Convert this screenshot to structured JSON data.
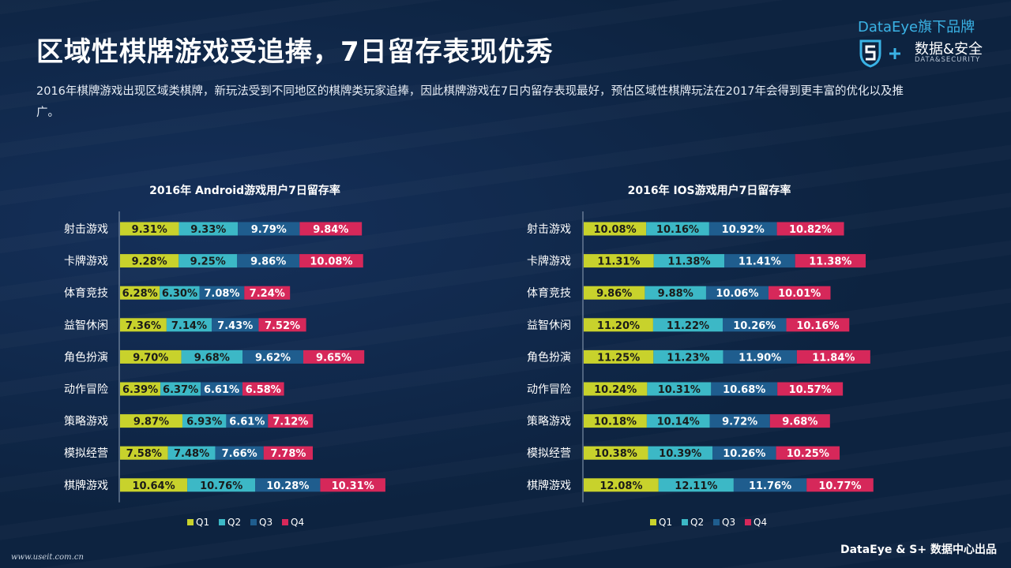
{
  "page": {
    "title": "区域性棋牌游戏受追捧，7日留存表现优秀",
    "description": "2016年棋牌游戏出现区域类棋牌，新玩法受到不同地区的棋牌类玩家追捧，因此棋牌游戏在7日内留存表现最好，预估区域性棋牌玩法在2017年会得到更丰富的优化以及推广。",
    "watermark": "www.useit.com.cn",
    "source": "DataEye & S+ 数据中心出品"
  },
  "logo": {
    "top_text": "DataEye旗下品牌",
    "cn_text": "数据&安全",
    "en_text": "DATA&SECURITY",
    "icon": "shield-s-plus-icon"
  },
  "colors": {
    "Q1": "#c8d22c",
    "Q2": "#3cb8c6",
    "Q3": "#1f5d8e",
    "Q4": "#d6285a",
    "background": "#0d2340"
  },
  "chart_data": [
    {
      "type": "bar",
      "orientation": "horizontal",
      "stacked": true,
      "title": "2016年 Android游戏用户7日留存率",
      "categories": [
        "射击游戏",
        "卡牌游戏",
        "体育竞技",
        "益智休闲",
        "角色扮演",
        "动作冒险",
        "策略游戏",
        "模拟经营",
        "棋牌游戏"
      ],
      "series": [
        {
          "name": "Q1",
          "values": [
            9.31,
            9.28,
            6.28,
            7.36,
            9.7,
            6.39,
            9.87,
            7.58,
            10.64
          ]
        },
        {
          "name": "Q2",
          "values": [
            9.33,
            9.25,
            6.3,
            7.14,
            9.68,
            6.37,
            6.93,
            7.48,
            10.76
          ]
        },
        {
          "name": "Q3",
          "values": [
            9.79,
            9.86,
            7.08,
            7.43,
            9.62,
            6.61,
            6.61,
            7.66,
            10.28
          ]
        },
        {
          "name": "Q4",
          "values": [
            9.84,
            10.08,
            7.24,
            7.52,
            9.65,
            6.58,
            7.12,
            7.78,
            10.31
          ]
        }
      ],
      "value_suffix": "%",
      "legend": "bottom",
      "grid": false
    },
    {
      "type": "bar",
      "orientation": "horizontal",
      "stacked": true,
      "title": "2016年 IOS游戏用户7日留存率",
      "categories": [
        "射击游戏",
        "卡牌游戏",
        "体育竞技",
        "益智休闲",
        "角色扮演",
        "动作冒险",
        "策略游戏",
        "模拟经营",
        "棋牌游戏"
      ],
      "series": [
        {
          "name": "Q1",
          "values": [
            10.08,
            11.31,
            9.86,
            11.2,
            11.25,
            10.24,
            10.18,
            10.38,
            12.08
          ]
        },
        {
          "name": "Q2",
          "values": [
            10.16,
            11.38,
            9.88,
            11.22,
            11.23,
            10.31,
            10.14,
            10.39,
            12.11
          ]
        },
        {
          "name": "Q3",
          "values": [
            10.92,
            11.41,
            10.06,
            10.26,
            11.9,
            10.68,
            9.72,
            10.26,
            11.76
          ]
        },
        {
          "name": "Q4",
          "values": [
            10.82,
            11.38,
            10.01,
            10.16,
            11.84,
            10.57,
            9.68,
            10.25,
            10.77
          ]
        }
      ],
      "value_suffix": "%",
      "legend": "bottom",
      "grid": false
    }
  ]
}
